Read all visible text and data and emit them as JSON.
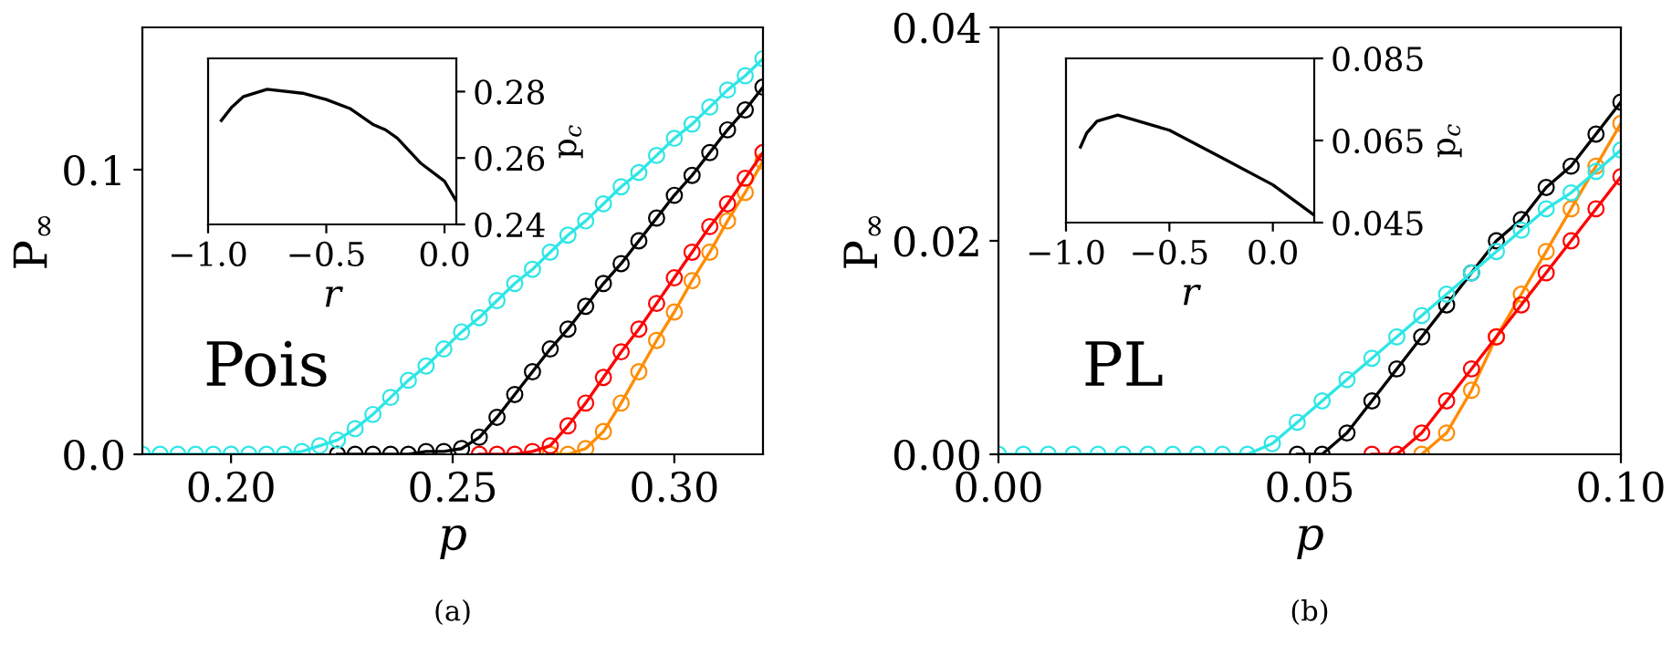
{
  "chart_data": [
    {
      "type": "line",
      "xlabel": "p",
      "ylabel": "P$_{∞}$",
      "marker": "circle",
      "xlim": [
        0.18,
        0.32
      ],
      "ylim": [
        0,
        0.15
      ],
      "xticks": [
        {
          "value": 0.2,
          "label": "0.20"
        },
        {
          "value": 0.25,
          "label": "0.25"
        },
        {
          "value": 0.3,
          "label": "0.30"
        }
      ],
      "yticks": [
        {
          "value": 0,
          "label": "0.0"
        },
        {
          "value": 0.1,
          "label": "0.1"
        }
      ],
      "annotations": [
        "Pois",
        "(a)"
      ],
      "x": [
        0.18,
        0.184,
        0.188,
        0.192,
        0.196,
        0.2,
        0.204,
        0.208,
        0.212,
        0.216,
        0.22,
        0.224,
        0.228,
        0.232,
        0.236,
        0.24,
        0.244,
        0.248,
        0.252,
        0.256,
        0.26,
        0.264,
        0.268,
        0.272,
        0.276,
        0.28,
        0.284,
        0.288,
        0.292,
        0.296,
        0.3,
        0.304,
        0.308,
        0.312,
        0.316,
        0.32
      ],
      "series": [
        {
          "color": "#ff8c00",
          "values": [
            null,
            null,
            null,
            null,
            null,
            null,
            null,
            null,
            null,
            null,
            null,
            null,
            null,
            null,
            null,
            null,
            null,
            null,
            null,
            null,
            null,
            null,
            null,
            0,
            0,
            0.002,
            0.008,
            0.018,
            0.029,
            0.04,
            0.05,
            0.061,
            0.071,
            0.082,
            0.092,
            0.103
          ]
        },
        {
          "color": "#ff0000",
          "values": [
            null,
            null,
            null,
            null,
            null,
            null,
            null,
            null,
            null,
            null,
            null,
            null,
            null,
            null,
            null,
            null,
            null,
            null,
            null,
            0,
            0,
            0,
            0.001,
            0.003,
            0.01,
            0.018,
            0.027,
            0.036,
            0.044,
            0.053,
            0.062,
            0.071,
            0.08,
            0.088,
            0.097,
            0.106
          ]
        },
        {
          "color": "#000000",
          "values": [
            null,
            null,
            null,
            null,
            null,
            null,
            null,
            null,
            null,
            null,
            null,
            0,
            0,
            0,
            0,
            0,
            0.001,
            0.001,
            0.002,
            0.006,
            0.013,
            0.021,
            0.029,
            0.037,
            0.044,
            0.052,
            0.06,
            0.067,
            0.075,
            0.083,
            0.091,
            0.098,
            0.106,
            0.114,
            0.121,
            0.129
          ]
        },
        {
          "color": "#2ee6e6",
          "values": [
            0,
            0,
            0,
            0,
            0,
            0,
            0,
            0,
            0,
            0.001,
            0.003,
            0.005,
            0.009,
            0.014,
            0.02,
            0.026,
            0.031,
            0.037,
            0.043,
            0.048,
            0.054,
            0.06,
            0.065,
            0.071,
            0.077,
            0.082,
            0.088,
            0.094,
            0.099,
            0.105,
            0.111,
            0.116,
            0.122,
            0.128,
            0.133,
            0.139
          ]
        }
      ]
    },
    {
      "type": "line",
      "xlabel": "r",
      "y2label": "p$_{c}$",
      "xlim": [
        -1.0,
        0.05
      ],
      "y2lim": [
        0.24,
        0.29
      ],
      "xticks": [
        {
          "value": -1.0,
          "label": "−1.0"
        },
        {
          "value": -0.5,
          "label": "−0.5"
        },
        {
          "value": 0,
          "label": "0.0"
        }
      ],
      "y2ticks": [
        0.24,
        0.26,
        0.28
      ],
      "x": [
        -0.944,
        -0.9,
        -0.85,
        -0.75,
        -0.6,
        -0.5,
        -0.4,
        -0.3,
        -0.25,
        -0.2,
        -0.1,
        0,
        0.05
      ],
      "series": [
        {
          "color": "#000000",
          "axis": "y2",
          "values": [
            0.2713,
            0.2753,
            0.2785,
            0.2807,
            0.2795,
            0.2776,
            0.2749,
            0.27,
            0.2685,
            0.266,
            0.2584,
            0.253,
            0.247
          ]
        }
      ]
    },
    {
      "type": "line",
      "xlabel": "p",
      "ylabel": "P$_{∞}$",
      "marker": "circle",
      "xlim": [
        0,
        0.1
      ],
      "ylim": [
        0,
        0.04
      ],
      "xticks": [
        {
          "value": 0,
          "label": "0.00"
        },
        {
          "value": 0.05,
          "label": "0.05"
        },
        {
          "value": 0.1,
          "label": "0.10"
        }
      ],
      "yticks": [
        {
          "value": 0,
          "label": "0.00"
        },
        {
          "value": 0.02,
          "label": "0.02"
        },
        {
          "value": 0.04,
          "label": "0.04"
        }
      ],
      "annotations": [
        "PL",
        "(b)"
      ],
      "x": [
        0,
        0.004,
        0.008,
        0.012,
        0.016,
        0.02,
        0.024,
        0.028,
        0.032,
        0.036,
        0.04,
        0.044,
        0.048,
        0.052,
        0.056,
        0.06,
        0.064,
        0.068,
        0.072,
        0.076,
        0.08,
        0.084,
        0.088,
        0.092,
        0.096,
        0.1
      ],
      "series": [
        {
          "color": "#ff8c00",
          "values": [
            null,
            null,
            null,
            null,
            null,
            null,
            null,
            null,
            null,
            null,
            null,
            null,
            null,
            null,
            null,
            null,
            null,
            0,
            0.002,
            0.006,
            0.011,
            0.015,
            0.019,
            0.023,
            0.027,
            0.031
          ]
        },
        {
          "color": "#ff0000",
          "values": [
            null,
            null,
            null,
            null,
            null,
            null,
            null,
            null,
            null,
            null,
            null,
            null,
            null,
            null,
            null,
            0,
            0,
            0.002,
            0.005,
            0.008,
            0.011,
            0.014,
            0.017,
            0.02,
            0.023,
            0.026
          ]
        },
        {
          "color": "#000000",
          "values": [
            null,
            null,
            null,
            null,
            null,
            null,
            null,
            null,
            null,
            null,
            null,
            null,
            0,
            0,
            0.002,
            0.005,
            0.008,
            0.011,
            0.014,
            0.017,
            0.02,
            0.022,
            0.025,
            0.027,
            0.03,
            0.033
          ]
        },
        {
          "color": "#2ee6e6",
          "values": [
            0,
            0,
            0,
            0,
            0,
            0,
            0,
            0,
            0,
            0,
            0,
            0.001,
            0.003,
            0.005,
            0.007,
            0.009,
            0.011,
            0.013,
            0.015,
            0.017,
            0.019,
            0.021,
            0.023,
            0.0245,
            0.0265,
            0.0285
          ]
        }
      ]
    },
    {
      "type": "line",
      "xlabel": "r",
      "y2label": "p$_{c}$",
      "xlim": [
        -1.0,
        0.2
      ],
      "y2lim": [
        0.045,
        0.085
      ],
      "xticks": [
        {
          "value": -1.0,
          "label": "−1.0"
        },
        {
          "value": -0.5,
          "label": "−0.5"
        },
        {
          "value": 0,
          "label": "0.0"
        }
      ],
      "y2ticks": [
        0.045,
        0.065,
        0.085
      ],
      "x": [
        -0.93,
        -0.9,
        -0.85,
        -0.75,
        -0.5,
        -0.25,
        0,
        0.2
      ],
      "series": [
        {
          "color": "#000000",
          "axis": "y2",
          "values": [
            0.0634,
            0.0668,
            0.0697,
            0.0712,
            0.0675,
            0.0609,
            0.0542,
            0.0468
          ]
        }
      ]
    }
  ]
}
